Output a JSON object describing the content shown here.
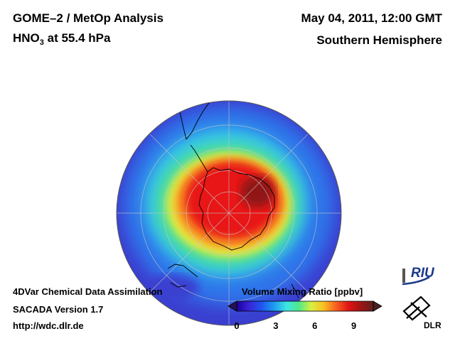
{
  "header": {
    "title": "GOME–2 / MetOp Analysis",
    "species_prefix": "HNO",
    "species_subscript": "3",
    "species_suffix": " at 55.4 hPa",
    "datetime": "May 04, 2011, 12:00 GMT",
    "region": "Southern Hemisphere"
  },
  "footer": {
    "line1": "4DVar Chemical Data Assimilation",
    "line2": "SACADA Version 1.7",
    "line3": "http://wdc.dlr.de"
  },
  "colorbar": {
    "title": "Volume Mixing Ratio [ppbv]",
    "ticks": [
      "0",
      "3",
      "6",
      "9"
    ],
    "tick_values": [
      0,
      3,
      6,
      9
    ],
    "range": [
      0,
      10.5
    ],
    "stops": [
      "#1a00a0",
      "#3a24d8",
      "#1f55f0",
      "#1e9bf0",
      "#3ce4e6",
      "#50e88c",
      "#d8f040",
      "#f8c020",
      "#f86020",
      "#e01414",
      "#a01414",
      "#602020"
    ]
  },
  "logos": {
    "riu": "RIU",
    "dlr": "DLR"
  },
  "map": {
    "projection": "orthographic-south-polar",
    "background_color": "#3b3fd0"
  }
}
